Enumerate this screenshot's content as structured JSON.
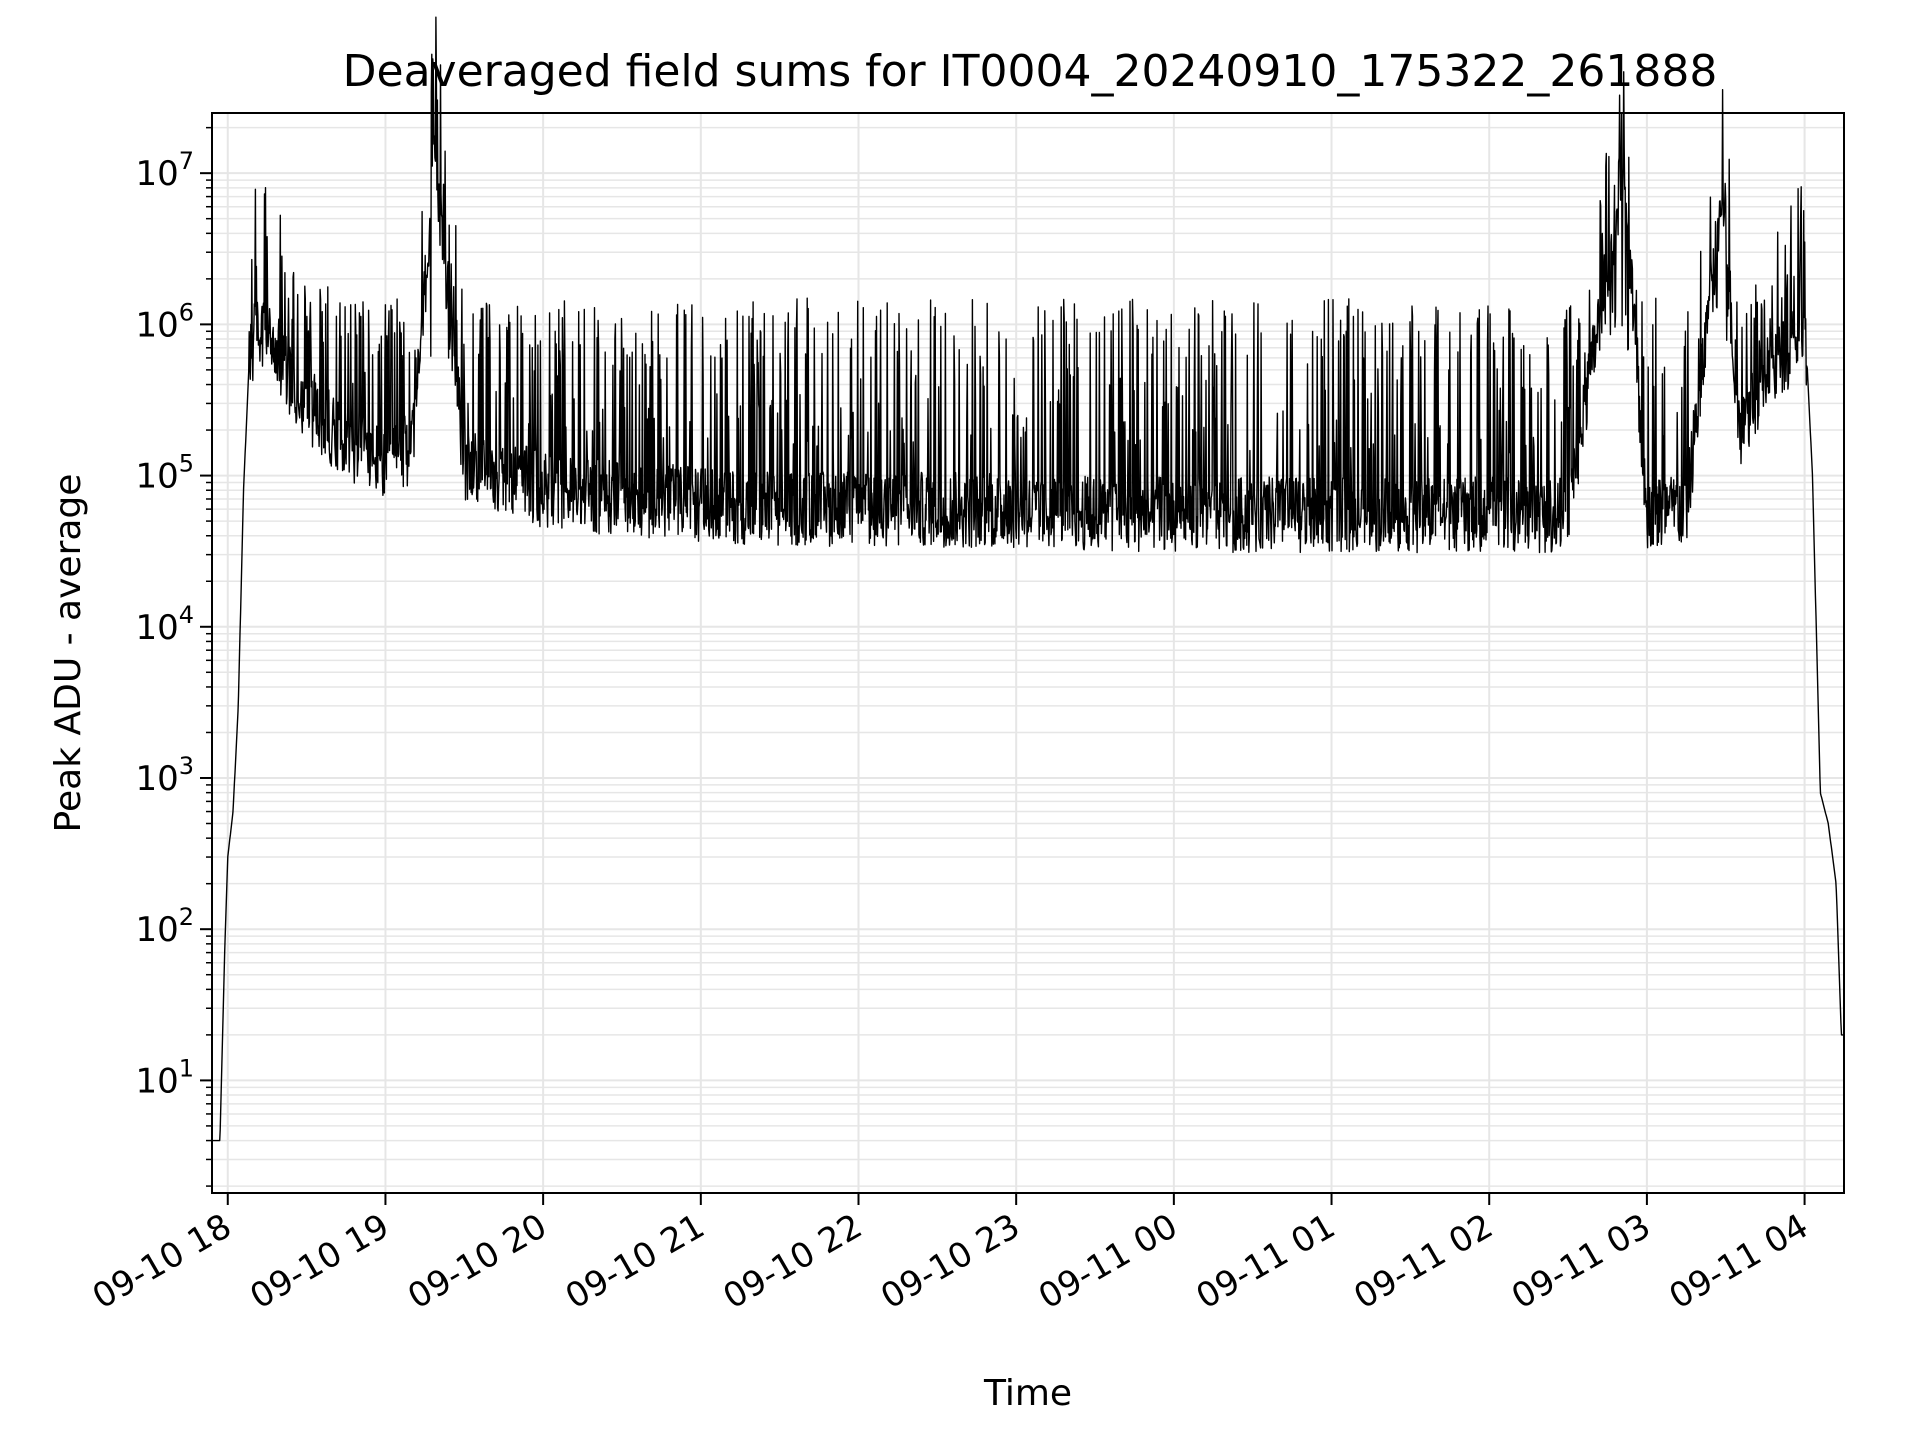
{
  "chart_data": {
    "type": "line",
    "title": "Deaveraged field sums for IT0004_20240910_175322_261888",
    "xlabel": "Time",
    "ylabel": "Peak ADU - average",
    "y_scale": "log",
    "ylim": [
      1.8,
      25000000
    ],
    "xlim": [
      "09-10 17:54",
      "09-11 04:15"
    ],
    "grid": true,
    "series_color": "#000000",
    "x_ticks": [
      {
        "label": "09-10 18",
        "hour": 18
      },
      {
        "label": "09-10 19",
        "hour": 19
      },
      {
        "label": "09-10 20",
        "hour": 20
      },
      {
        "label": "09-10 21",
        "hour": 21
      },
      {
        "label": "09-10 22",
        "hour": 22
      },
      {
        "label": "09-10 23",
        "hour": 23
      },
      {
        "label": "09-11 00",
        "hour": 24
      },
      {
        "label": "09-11 01",
        "hour": 25
      },
      {
        "label": "09-11 02",
        "hour": 26
      },
      {
        "label": "09-11 03",
        "hour": 27
      },
      {
        "label": "09-11 04",
        "hour": 28
      }
    ],
    "y_ticks": [
      {
        "base": "10",
        "exp": "1",
        "value": 10
      },
      {
        "base": "10",
        "exp": "2",
        "value": 100
      },
      {
        "base": "10",
        "exp": "3",
        "value": 1000
      },
      {
        "base": "10",
        "exp": "4",
        "value": 10000
      },
      {
        "base": "10",
        "exp": "5",
        "value": 100000
      },
      {
        "base": "10",
        "exp": "6",
        "value": 1000000
      },
      {
        "base": "10",
        "exp": "7",
        "value": 10000000
      }
    ],
    "series": [
      {
        "x": [
          "09-10 17:54",
          "09-10 17:57",
          "09-10 17:59",
          "09-10 18:00",
          "09-10 18:02",
          "09-10 18:04",
          "09-10 18:06",
          "09-10 18:08",
          "09-10 18:10",
          "09-10 18:12",
          "09-10 18:15",
          "09-10 18:20",
          "09-10 18:25",
          "09-10 18:30",
          "09-10 18:40",
          "09-10 18:50",
          "09-10 19:00",
          "09-10 19:10",
          "09-10 19:19",
          "09-10 19:30",
          "09-10 19:45",
          "09-10 20:00",
          "09-10 20:30",
          "09-10 21:00",
          "09-10 21:30",
          "09-10 22:00",
          "09-10 22:30",
          "09-10 23:00",
          "09-10 23:30",
          "09-11 00:00",
          "09-11 00:30",
          "09-11 01:00",
          "09-11 01:30",
          "09-11 02:00",
          "09-11 02:30",
          "09-11 02:51",
          "09-11 03:00",
          "09-11 03:15",
          "09-11 03:29",
          "09-11 03:35",
          "09-11 03:45",
          "09-11 03:55",
          "09-11 04:00",
          "09-11 04:03",
          "09-11 04:06",
          "09-11 04:09",
          "09-11 04:12",
          "09-11 04:14"
        ],
        "y": [
          4,
          4,
          90,
          300,
          600,
          3000,
          80000,
          500000,
          800000,
          900000,
          800000,
          600000,
          400000,
          300000,
          200000,
          150000,
          120000,
          150000,
          12000000,
          120000,
          100000,
          80000,
          70000,
          65000,
          60000,
          60000,
          60000,
          58000,
          56000,
          55000,
          55000,
          55000,
          55000,
          55000,
          55000,
          11000000,
          55000,
          60000,
          8000000,
          200000,
          450000,
          700000,
          1200000,
          100000,
          800,
          500,
          200,
          20
        ]
      }
    ]
  }
}
